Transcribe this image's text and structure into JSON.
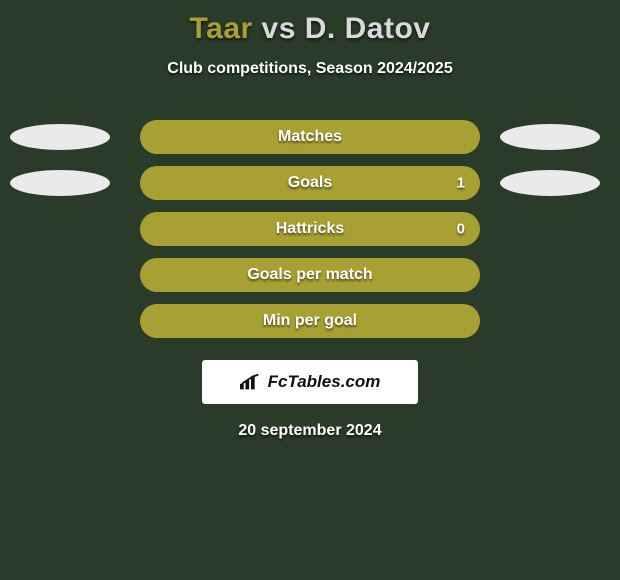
{
  "header": {
    "player1": "Taar",
    "vs": "vs",
    "player2": "D. Datov",
    "subtitle": "Club competitions, Season 2024/2025",
    "player1_color": "#a8a033",
    "player2_color": "#d9d9d9"
  },
  "stats": {
    "bar_color": "#a8a033",
    "rows": [
      {
        "label": "Matches",
        "right_value": "",
        "show_left_shape": true,
        "show_right_shape": true
      },
      {
        "label": "Goals",
        "right_value": "1",
        "show_left_shape": true,
        "show_right_shape": true
      },
      {
        "label": "Hattricks",
        "right_value": "0",
        "show_left_shape": false,
        "show_right_shape": false
      },
      {
        "label": "Goals per match",
        "right_value": "",
        "show_left_shape": false,
        "show_right_shape": false
      },
      {
        "label": "Min per goal",
        "right_value": "",
        "show_left_shape": false,
        "show_right_shape": false
      }
    ]
  },
  "branding": {
    "text": "FcTables.com",
    "icon_name": "bars-icon",
    "background": "#ffffff"
  },
  "date": "20 september 2024",
  "colors": {
    "page_background": "#2a3b2a",
    "text": "#ffffff",
    "side_shape": "#eaeaea"
  }
}
